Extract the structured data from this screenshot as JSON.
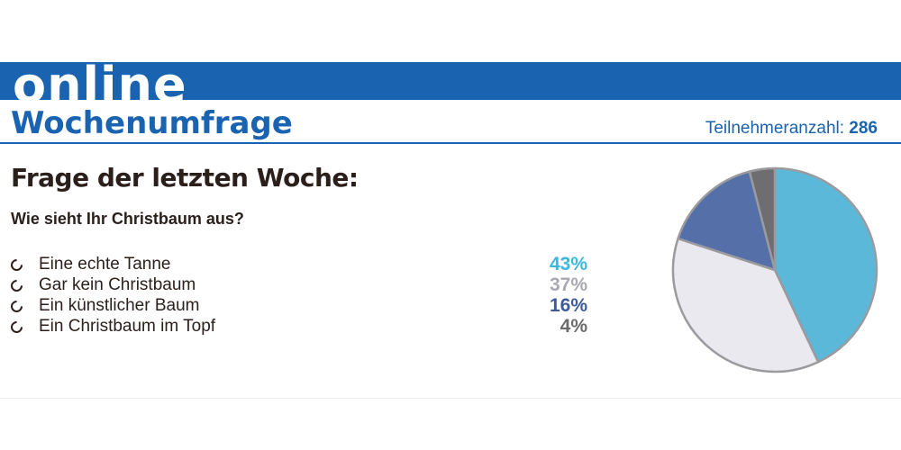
{
  "header": {
    "banner_text": "online",
    "title": "Wochenumfrage",
    "participants_label": "Teilnehmeranzahl:",
    "participants_count": "286"
  },
  "question_heading": "Frage der letzten Woche:",
  "question": "Wie sieht Ihr Christbaum aus?",
  "colors": {
    "brand_blue": "#1a63b0"
  },
  "chart_data": {
    "type": "pie",
    "categories": [
      "Eine echte Tanne",
      "Gar kein Christbaum",
      "Ein künstlicher Baum",
      "Ein Christbaum im Topf"
    ],
    "values": [
      43,
      37,
      16,
      4
    ],
    "labels": [
      "43%",
      "37%",
      "16%",
      "4%"
    ],
    "colors": [
      "#5bb8d8",
      "#e9e9ef",
      "#5570a9",
      "#6e6e70"
    ],
    "label_colors": [
      "#3ab7e0",
      "#a9a9b2",
      "#3d5a9c",
      "#6b6b6b"
    ]
  }
}
